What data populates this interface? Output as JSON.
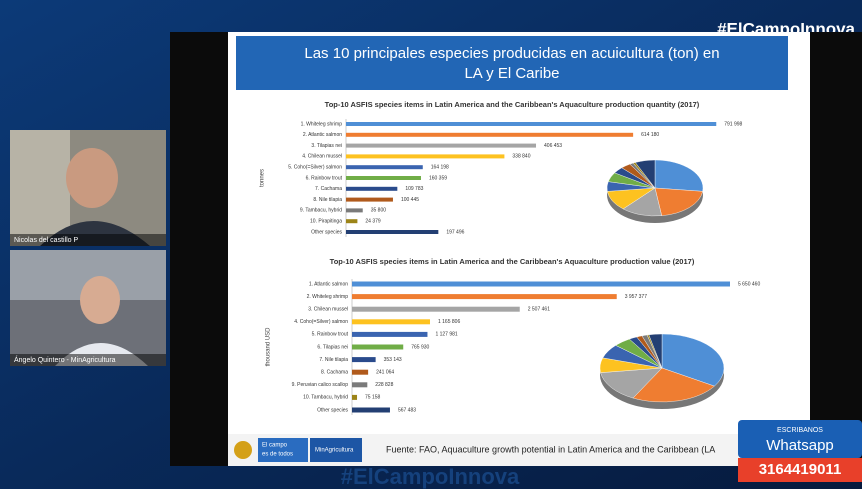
{
  "hashtag": "#ElCampoInnova",
  "participants": [
    {
      "name": "Nicolas del castillo P"
    },
    {
      "name": "Ángelo Quintero - MinAgricultura"
    }
  ],
  "slide": {
    "title_line1": "Las 10 principales especies producidas en acuicultura (ton) en",
    "title_line2": "LA y El Caribe",
    "source": "Fuente: FAO, Aquaculture growth potential in Latin America and the Caribbean (LA",
    "logo_text_1": "El campo",
    "logo_text_2": "es de todos",
    "logo_ministry": "MinAgricultura"
  },
  "chart_data": [
    {
      "type": "bar",
      "orientation": "horizontal",
      "title": "Top-10 ASFIS species items in Latin America and the Caribbean's Aquaculture production quantity (2017)",
      "y_label": "tonnes",
      "categories": [
        "1. Whiteleg shrimp",
        "2. Atlantic salmon",
        "3. Tilapias nei",
        "4. Chilean mussel",
        "5. Coho(=Silver) salmon",
        "6. Rainbow trout",
        "7. Cachama",
        "8. Nile tilapia",
        "9. Tambacu, hybrid",
        "10. Pirapitinga",
        "Other species"
      ],
      "values": [
        791998,
        614180,
        406453,
        338840,
        164198,
        160359,
        109783,
        100445,
        35800,
        24379,
        197496
      ],
      "value_labels": [
        "791 998",
        "614 180",
        "406 453",
        "338 840",
        "164 198",
        "160 359",
        "109 783",
        "100 445",
        "35 800",
        "24 379",
        "197 496"
      ],
      "colors": [
        "#4f8fd6",
        "#ef7d31",
        "#a5a5a5",
        "#fdc220",
        "#3a64b0",
        "#70ad47",
        "#2a4b8c",
        "#b05a1c",
        "#7a7a7a",
        "#9c8418",
        "#233f73"
      ],
      "xlim": [
        0,
        800000
      ]
    },
    {
      "type": "bar",
      "orientation": "horizontal",
      "title": "Top-10 ASFIS species items in Latin America and the Caribbean's Aquaculture production value (2017)",
      "y_label": "thousand USD",
      "categories": [
        "1. Atlantic salmon",
        "2. Whiteleg shrimp",
        "3. Chilean mussel",
        "4. Coho(=Silver) salmon",
        "5. Rainbow trout",
        "6. Tilapias nei",
        "7. Nile tilapia",
        "8. Cachama",
        "9. Peruvian calico scallop",
        "10. Tambacu, hybrid",
        "Other species"
      ],
      "values": [
        5650460,
        3957377,
        2507461,
        1165806,
        1127981,
        765930,
        353143,
        241064,
        228828,
        75158,
        567483
      ],
      "value_labels": [
        "5 650 460",
        "3 957 377",
        "2 507 461",
        "1 165 806",
        "1 127 981",
        "765 930",
        "353 143",
        "241 064",
        "228 828",
        "75 158",
        "567 483"
      ],
      "colors": [
        "#4f8fd6",
        "#ef7d31",
        "#a5a5a5",
        "#fdc220",
        "#3a64b0",
        "#70ad47",
        "#2a4b8c",
        "#b05a1c",
        "#7a7a7a",
        "#9c8418",
        "#233f73"
      ],
      "xlim": [
        0,
        5800000
      ]
    }
  ],
  "watermark": "#ElCampoInnova",
  "contact": {
    "label": "ESCRIBANOS",
    "channel": "Whatsapp",
    "number": "3164419011"
  }
}
